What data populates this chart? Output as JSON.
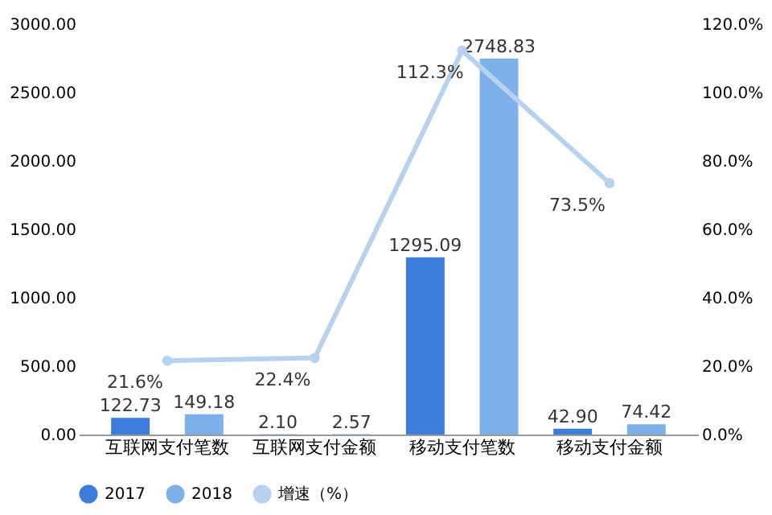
{
  "chart_data": {
    "type": "bar",
    "categories": [
      "互联网支付笔数",
      "互联网支付金额",
      "移动支付笔数",
      "移动支付金额"
    ],
    "series": [
      {
        "name": "2017",
        "color": "#3b7dd8",
        "values": [
          122.73,
          2.1,
          1295.09,
          42.9
        ],
        "value_labels": [
          "122.73",
          "2.10",
          "1295.09",
          "42.90"
        ]
      },
      {
        "name": "2018",
        "color": "#7eb0ea",
        "values": [
          149.18,
          2.57,
          2748.83,
          74.42
        ],
        "value_labels": [
          "149.18",
          "2.57",
          "2748.83",
          "74.42"
        ]
      },
      {
        "name": "增速（%）",
        "type": "line",
        "axis": "y2",
        "color": "#b7d2ee",
        "marker": "circle",
        "values": [
          21.6,
          22.4,
          112.3,
          73.5
        ],
        "value_labels": [
          "21.6%",
          "22.4%",
          "112.3%",
          "73.5%"
        ]
      }
    ],
    "data_labels": true,
    "ylim": [
      0,
      3000
    ],
    "yticks": [
      {
        "value": 0,
        "label": "0.00"
      },
      {
        "value": 500,
        "label": "500.00"
      },
      {
        "value": 1000,
        "label": "1000.00"
      },
      {
        "value": 1500,
        "label": "1500.00"
      },
      {
        "value": 2000,
        "label": "2000.00"
      },
      {
        "value": 2500,
        "label": "2500.00"
      },
      {
        "value": 3000,
        "label": "3000.00"
      }
    ],
    "y2lim": [
      0,
      120
    ],
    "y2ticks": [
      {
        "value": 0,
        "label": "0.0%"
      },
      {
        "value": 20,
        "label": "20.0%"
      },
      {
        "value": 40,
        "label": "40.0%"
      },
      {
        "value": 60,
        "label": "60.0%"
      },
      {
        "value": 80,
        "label": "80.0%"
      },
      {
        "value": 100,
        "label": "100.0%"
      },
      {
        "value": 120,
        "label": "120.0%"
      }
    ],
    "grid": false,
    "legend": "bottom"
  }
}
